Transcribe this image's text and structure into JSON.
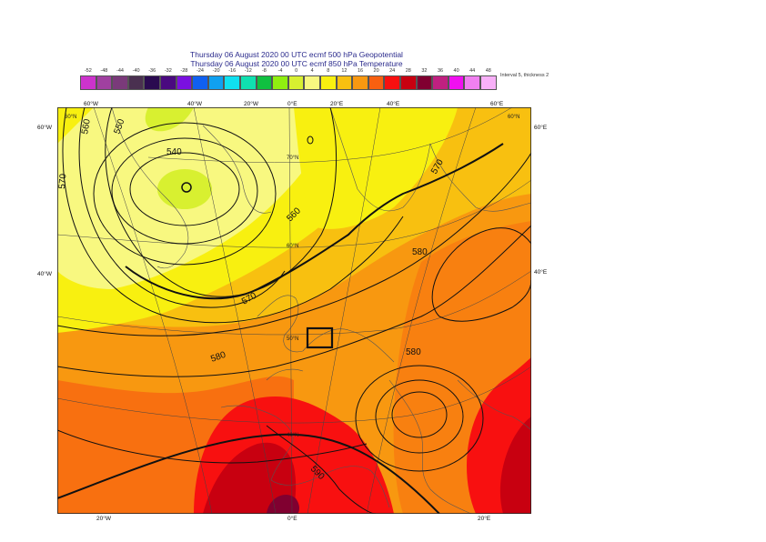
{
  "title_line1": "Thursday 06 August 2020 00 UTC ecmf 500 hPa  Geopotential",
  "title_line2": "Thursday 06 August 2020 00 UTC ecmf 850 hPa  Temperature",
  "legend": {
    "ticks": [
      "-52",
      "-48",
      "-44",
      "-40",
      "-36",
      "-32",
      "-28",
      "-24",
      "-20",
      "-16",
      "-12",
      "-8",
      "-4",
      "0",
      "4",
      "8",
      "12",
      "16",
      "20",
      "24",
      "28",
      "32",
      "36",
      "40",
      "44",
      "48"
    ],
    "colors": [
      "#cc33cc",
      "#a040a0",
      "#7a3a7a",
      "#4a3050",
      "#2a0a50",
      "#4a0a80",
      "#7a10e0",
      "#1060f0",
      "#10a0f0",
      "#10e0f0",
      "#10e0b0",
      "#10c040",
      "#90ee10",
      "#d8f030",
      "#f8f880",
      "#f8f010",
      "#f8c010",
      "#f89810",
      "#f86010",
      "#f81010",
      "#c80010",
      "#800030",
      "#c02080",
      "#f010f0",
      "#f080f0",
      "#f8b0f8"
    ],
    "note": "Interval 5, thickness 2"
  },
  "map": {
    "top_labels": [
      "60°W",
      "40°W",
      "20°W",
      "0°E",
      "20°E",
      "40°E",
      "60°E"
    ],
    "bottom_labels": [
      "20°W",
      "0°E",
      "20°E"
    ],
    "left_labels": [
      "60°W",
      "40°W"
    ],
    "right_labels": [
      "60°E",
      "40°E"
    ],
    "lat_labels": [
      "70°N",
      "60°N",
      "50°N",
      "40°N"
    ],
    "corner_labels": [
      "60°N",
      "60°N"
    ],
    "contour_labels": [
      "560",
      "550",
      "540",
      "570",
      "560",
      "570",
      "570",
      "580",
      "580",
      "580",
      "590"
    ]
  }
}
